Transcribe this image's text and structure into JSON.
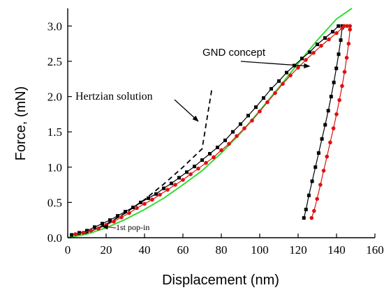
{
  "chart_data": {
    "type": "scatter",
    "xlabel": "Displacement (nm)",
    "ylabel": "Force, (mN)",
    "xlim": [
      0,
      160
    ],
    "ylim": [
      0,
      3.25
    ],
    "xticks": [
      0,
      20,
      40,
      60,
      80,
      100,
      120,
      140,
      160
    ],
    "yticks": [
      0.0,
      0.5,
      1.0,
      1.5,
      2.0,
      2.5,
      3.0
    ],
    "xtick_labels": [
      "0",
      "20",
      "40",
      "60",
      "80",
      "100",
      "120",
      "140",
      "160"
    ],
    "ytick_labels": [
      "0.0",
      "0.5",
      "1.0",
      "1.5",
      "2.0",
      "2.5",
      "3.0"
    ],
    "grid": false,
    "legend": "none",
    "series": [
      {
        "style": "dashed-line",
        "color": "#000000",
        "x": [
          0,
          10,
          20,
          30,
          40,
          50,
          60,
          70,
          75
        ],
        "y": [
          0,
          0.067,
          0.19,
          0.35,
          0.54,
          0.76,
          1.0,
          1.26,
          2.1
        ]
      },
      {
        "style": "solid-line",
        "color": "#33dd33",
        "x": [
          0,
          10,
          20,
          30,
          40,
          50,
          60,
          70,
          80,
          90,
          100,
          110,
          120,
          130,
          140,
          148
        ],
        "y": [
          0,
          0.05,
          0.14,
          0.26,
          0.4,
          0.56,
          0.75,
          0.95,
          1.2,
          1.48,
          1.8,
          2.13,
          2.47,
          2.8,
          3.1,
          3.25
        ]
      },
      {
        "style": "markers-square",
        "color": "#000000",
        "loading": {
          "x": [
            2,
            6,
            10,
            14,
            18,
            22,
            26,
            30,
            34,
            38,
            42,
            46,
            50,
            54,
            58,
            62,
            66,
            70,
            74,
            78,
            82,
            86,
            90,
            94,
            98,
            102,
            106,
            110,
            114,
            118,
            122,
            126,
            130,
            134,
            138,
            141
          ],
          "y": [
            0.04,
            0.07,
            0.1,
            0.15,
            0.2,
            0.25,
            0.31,
            0.37,
            0.43,
            0.5,
            0.56,
            0.62,
            0.7,
            0.77,
            0.85,
            0.93,
            1.01,
            1.1,
            1.19,
            1.28,
            1.38,
            1.5,
            1.61,
            1.73,
            1.85,
            1.98,
            2.11,
            2.22,
            2.34,
            2.44,
            2.54,
            2.63,
            2.74,
            2.83,
            2.92,
            3.0
          ]
        },
        "unloading": {
          "x": [
            143,
            142.2,
            141.1,
            139.9,
            138.6,
            137.2,
            135.7,
            134.1,
            132.4,
            130.7,
            129,
            127.3,
            125.6,
            124.1,
            123
          ],
          "y": [
            3.0,
            2.8,
            2.6,
            2.4,
            2.2,
            2.0,
            1.8,
            1.6,
            1.4,
            1.2,
            1.0,
            0.8,
            0.6,
            0.4,
            0.28
          ]
        }
      },
      {
        "style": "markers-circle",
        "color": "#dd1111",
        "loading": {
          "x": [
            4,
            8,
            12,
            16,
            20,
            24,
            28,
            32,
            36,
            40,
            44,
            48,
            52,
            56,
            60,
            64,
            68,
            72,
            76,
            80,
            84,
            88,
            92,
            96,
            100,
            104,
            108,
            112,
            116,
            120,
            124,
            128,
            132,
            136,
            140,
            143
          ],
          "y": [
            0.05,
            0.07,
            0.1,
            0.13,
            0.18,
            0.23,
            0.29,
            0.35,
            0.42,
            0.48,
            0.54,
            0.61,
            0.68,
            0.75,
            0.82,
            0.9,
            0.98,
            1.06,
            1.14,
            1.24,
            1.33,
            1.44,
            1.55,
            1.66,
            1.79,
            1.92,
            2.05,
            2.18,
            2.3,
            2.41,
            2.52,
            2.62,
            2.72,
            2.81,
            2.9,
            2.97
          ]
        },
        "top": {
          "x": [
            144,
            145.5,
            147
          ],
          "y": [
            3.0,
            3.0,
            3.0
          ]
        },
        "unloading": {
          "x": [
            147,
            146.3,
            145.3,
            144.2,
            142.9,
            141.5,
            140,
            138.4,
            136.7,
            135,
            133.3,
            131.6,
            129.9,
            128.3,
            127
          ],
          "y": [
            2.95,
            2.75,
            2.55,
            2.35,
            2.15,
            1.95,
            1.75,
            1.55,
            1.35,
            1.15,
            0.95,
            0.75,
            0.55,
            0.38,
            0.28
          ]
        }
      }
    ],
    "annotations": [
      {
        "text": "GND concept",
        "arrow_to": [
          126,
          2.43
        ]
      },
      {
        "text": "Hertzian solution",
        "arrow_to": [
          68,
          1.65
        ]
      },
      {
        "text": "1st pop-in",
        "arrow_to": [
          18,
          0.16
        ]
      }
    ]
  }
}
